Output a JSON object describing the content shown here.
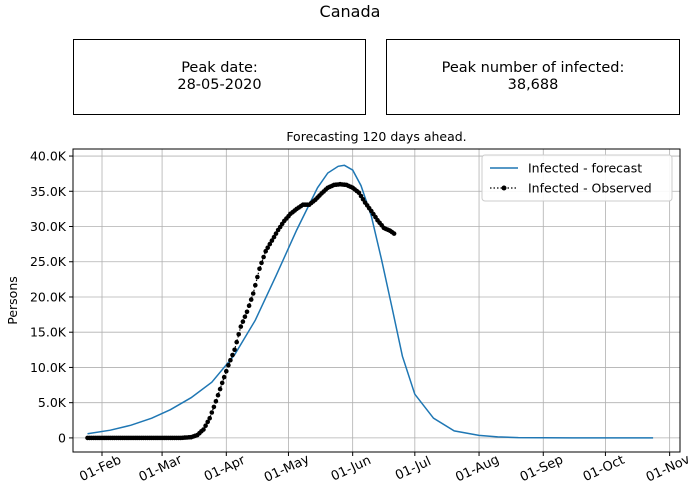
{
  "page": {
    "title": "Canada"
  },
  "info_boxes": {
    "peak_date": {
      "label": "Peak date:",
      "value": "28-05-2020"
    },
    "peak_infected": {
      "label": "Peak number of infected:",
      "value": "38,688"
    }
  },
  "colors": {
    "forecast": "#1f77b4",
    "observed": "#000000",
    "grid": "#b0b0b0"
  },
  "chart_data": {
    "type": "line",
    "title": "Forecasting 120 days ahead.",
    "xlabel": "",
    "ylabel": "Persons",
    "x_ticks": [
      "01-Feb",
      "01-Mar",
      "01-Apr",
      "01-May",
      "01-Jun",
      "01-Jul",
      "01-Aug",
      "01-Sep",
      "01-Oct",
      "01-Nov"
    ],
    "y_ticks": [
      "0",
      "5.0K",
      "10.0K",
      "15.0K",
      "20.0K",
      "25.0K",
      "30.0K",
      "35.0K",
      "40.0K"
    ],
    "xlim": [
      "2020-01-18",
      "2020-11-06"
    ],
    "ylim": [
      -2000,
      41000
    ],
    "grid": true,
    "legend": {
      "position": "top-right"
    },
    "series": [
      {
        "name": "Infected - forecast",
        "style": "line",
        "x": [
          "2020-01-25",
          "2020-02-05",
          "2020-02-15",
          "2020-02-25",
          "2020-03-05",
          "2020-03-15",
          "2020-03-25",
          "2020-04-05",
          "2020-04-15",
          "2020-04-25",
          "2020-05-05",
          "2020-05-15",
          "2020-05-20",
          "2020-05-25",
          "2020-05-28",
          "2020-06-01",
          "2020-06-05",
          "2020-06-10",
          "2020-06-15",
          "2020-06-20",
          "2020-06-25",
          "2020-07-01",
          "2020-07-10",
          "2020-07-20",
          "2020-08-01",
          "2020-08-10",
          "2020-08-20",
          "2020-09-01",
          "2020-09-15",
          "2020-10-01",
          "2020-10-24"
        ],
        "y": [
          600,
          1100,
          1800,
          2800,
          4000,
          5700,
          7900,
          11800,
          16700,
          23000,
          29500,
          35500,
          37600,
          38550,
          38688,
          38000,
          35800,
          31500,
          25200,
          18500,
          11600,
          6200,
          2800,
          1000,
          350,
          150,
          50,
          15,
          5,
          2,
          1
        ]
      },
      {
        "name": "Infected - Observed",
        "style": "dots-dotted-line",
        "x": [
          "2020-01-25",
          "2020-02-01",
          "2020-02-10",
          "2020-02-20",
          "2020-03-01",
          "2020-03-10",
          "2020-03-15",
          "2020-03-18",
          "2020-03-21",
          "2020-03-24",
          "2020-03-27",
          "2020-03-30",
          "2020-04-02",
          "2020-04-05",
          "2020-04-08",
          "2020-04-11",
          "2020-04-14",
          "2020-04-17",
          "2020-04-20",
          "2020-04-23",
          "2020-04-26",
          "2020-04-29",
          "2020-05-02",
          "2020-05-05",
          "2020-05-08",
          "2020-05-11",
          "2020-05-14",
          "2020-05-17",
          "2020-05-20",
          "2020-05-23",
          "2020-05-26",
          "2020-05-29",
          "2020-06-01",
          "2020-06-04",
          "2020-06-07",
          "2020-06-10",
          "2020-06-13",
          "2020-06-16",
          "2020-06-19",
          "2020-06-21"
        ],
        "y": [
          0,
          0,
          0,
          0,
          0,
          0,
          100,
          400,
          1200,
          2800,
          5200,
          7800,
          10300,
          12500,
          15800,
          17900,
          20500,
          24000,
          26500,
          28000,
          29500,
          30800,
          31800,
          32500,
          33100,
          33100,
          33800,
          34700,
          35500,
          35900,
          36000,
          35900,
          35500,
          34800,
          33400,
          32200,
          30900,
          29800,
          29400,
          29000
        ]
      }
    ]
  }
}
